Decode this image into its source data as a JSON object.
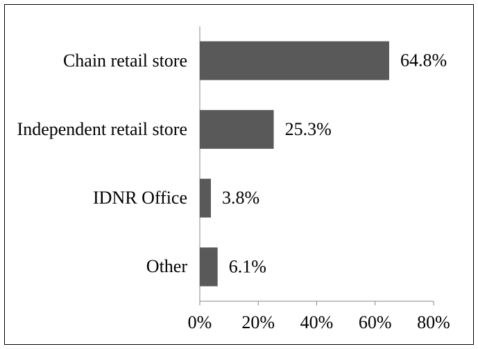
{
  "chart_data": {
    "type": "bar",
    "orientation": "horizontal",
    "categories": [
      "Chain retail store",
      "Independent retail store",
      "IDNR Office",
      "Other"
    ],
    "values": [
      64.8,
      25.3,
      3.8,
      6.1
    ],
    "value_labels": [
      "64.8%",
      "25.3%",
      "3.8%",
      "6.1%"
    ],
    "color": "#595959",
    "xlim": [
      0,
      80
    ],
    "xticks": [
      {
        "value": 0,
        "label": "0%"
      },
      {
        "value": 20,
        "label": "20%"
      },
      {
        "value": 40,
        "label": "40%"
      },
      {
        "value": 60,
        "label": "60%"
      },
      {
        "value": 80,
        "label": "80%"
      }
    ],
    "grid": false
  }
}
